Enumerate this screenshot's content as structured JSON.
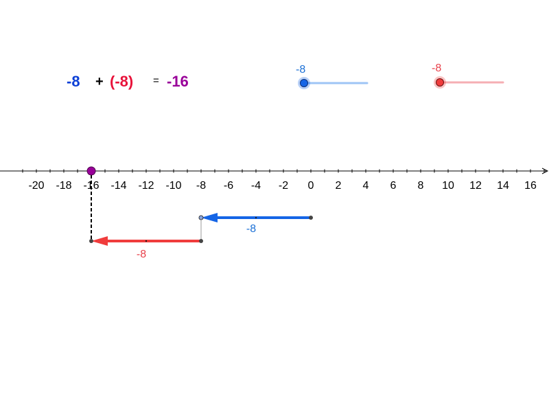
{
  "equation": {
    "a": "-8",
    "plus": "+",
    "b": "(-8)",
    "equals": "=",
    "result": "-16"
  },
  "sliders": {
    "blue": {
      "label": "-8",
      "value": -8,
      "min": -8,
      "max": 8
    },
    "red": {
      "label": "-8",
      "value": -8,
      "min": -8,
      "max": 8
    }
  },
  "number_line": {
    "min": -21,
    "max": 17.3,
    "tick_step": 1,
    "ticks": [
      {
        "v": -20,
        "label": "-20"
      },
      {
        "v": -18,
        "label": "-18"
      },
      {
        "v": -16,
        "label": "-16"
      },
      {
        "v": -14,
        "label": "-14"
      },
      {
        "v": -12,
        "label": "-12"
      },
      {
        "v": -10,
        "label": "-10"
      },
      {
        "v": -8,
        "label": "-8"
      },
      {
        "v": -6,
        "label": "-6"
      },
      {
        "v": -4,
        "label": "-4"
      },
      {
        "v": -2,
        "label": "-2"
      },
      {
        "v": 0,
        "label": "0"
      },
      {
        "v": 2,
        "label": "2"
      },
      {
        "v": 4,
        "label": "4"
      },
      {
        "v": 6,
        "label": "6"
      },
      {
        "v": 8,
        "label": "8"
      },
      {
        "v": 10,
        "label": "10"
      },
      {
        "v": 12,
        "label": "12"
      },
      {
        "v": 14,
        "label": "14"
      },
      {
        "v": 16,
        "label": "16"
      }
    ],
    "result_point": -16
  },
  "vectors": {
    "blue": {
      "from": 0,
      "to": -8,
      "label": "-8"
    },
    "red": {
      "from": -8,
      "to": -16,
      "label": "-8"
    }
  },
  "colors": {
    "blue": "#1565e6",
    "red": "#f03c3c",
    "purple": "#990099",
    "label_blue": "#1a6fd6",
    "label_red": "#e8404a",
    "axis": "#000000",
    "eq_blue": "#0b3fd6",
    "eq_red": "#e8123a"
  }
}
